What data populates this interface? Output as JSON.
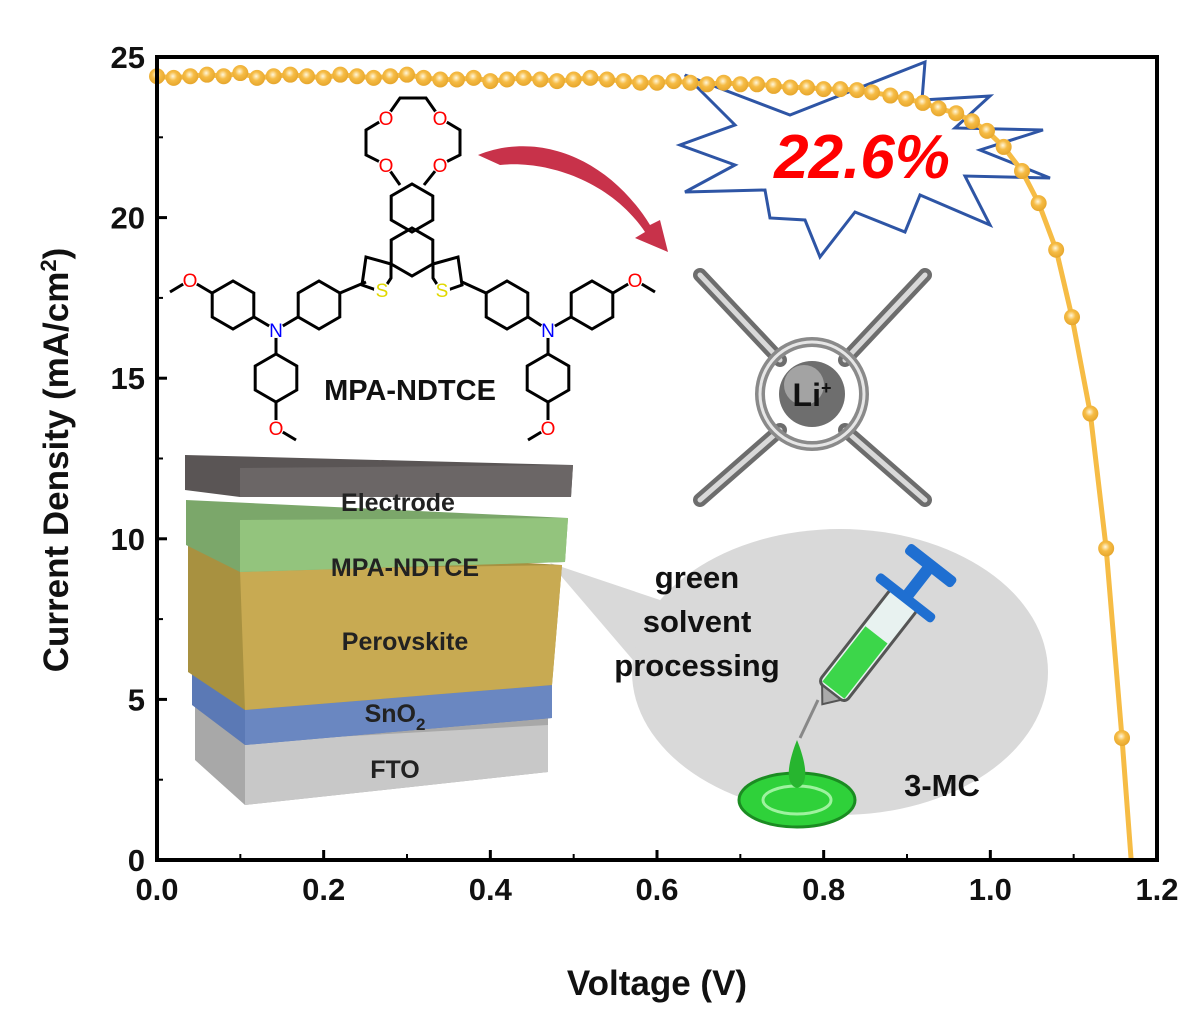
{
  "chart_data": {
    "type": "line",
    "xlabel": "Voltage (V)",
    "ylabel": "Current Density (mA/cm²)",
    "ylabel_main": "Current Density (mA/cm",
    "ylabel_sup": "2",
    "ylabel_end": ")",
    "xlim": [
      0,
      1.2
    ],
    "ylim": [
      0,
      25
    ],
    "x_ticks": [
      "0.0",
      "0.2",
      "0.4",
      "0.6",
      "0.8",
      "1.0",
      "1.2"
    ],
    "y_ticks": [
      "0",
      "5",
      "10",
      "15",
      "20",
      "25"
    ],
    "grid": false,
    "series_color": "#F6BC45",
    "series": [
      {
        "x": [
          0.0,
          0.02,
          0.04,
          0.06,
          0.08,
          0.1,
          0.12,
          0.14,
          0.16,
          0.18,
          0.2,
          0.22,
          0.24,
          0.26,
          0.28,
          0.3,
          0.32,
          0.34,
          0.36,
          0.38,
          0.4,
          0.42,
          0.44,
          0.46,
          0.48,
          0.5,
          0.52,
          0.54,
          0.56,
          0.58,
          0.6,
          0.62,
          0.64,
          0.66,
          0.68,
          0.7,
          0.72,
          0.74,
          0.76,
          0.78,
          0.8,
          0.82,
          0.84,
          0.858,
          0.88,
          0.899,
          0.919,
          0.938,
          0.959,
          0.978,
          0.996,
          1.016,
          1.038,
          1.058,
          1.079,
          1.098,
          1.12,
          1.139,
          1.158,
          1.169
        ],
        "y": [
          24.4,
          24.35,
          24.4,
          24.45,
          24.4,
          24.5,
          24.35,
          24.4,
          24.45,
          24.4,
          24.35,
          24.45,
          24.4,
          24.35,
          24.4,
          24.45,
          24.35,
          24.3,
          24.3,
          24.35,
          24.25,
          24.3,
          24.35,
          24.3,
          24.25,
          24.3,
          24.35,
          24.3,
          24.25,
          24.2,
          24.2,
          24.25,
          24.2,
          24.15,
          24.2,
          24.15,
          24.15,
          24.1,
          24.05,
          24.05,
          24.0,
          24.0,
          23.97,
          23.9,
          23.8,
          23.7,
          23.57,
          23.4,
          23.25,
          23.0,
          22.7,
          22.2,
          21.45,
          20.45,
          19.0,
          16.9,
          13.9,
          9.7,
          3.8,
          0.0
        ],
        "markers_until_index": 58
      }
    ]
  },
  "annotations": {
    "efficiency": "22.6%",
    "efficiency_color": "#FF0000",
    "burst_color": "#2E55A5",
    "molecule_name": "MPA-NDTCE",
    "atom_labels": {
      "oxygen": "O",
      "nitrogen": "N",
      "sulfur": "S"
    },
    "ion": "Li",
    "ion_charge": "+",
    "layers": {
      "electrode": "Electrode",
      "htl": "MPA-NDTCE",
      "perovskite": "Perovskite",
      "etl_main": "SnO",
      "etl_sub": "2",
      "substrate": "FTO"
    },
    "process_line1": "green",
    "process_line2": "solvent",
    "process_line3": "processing",
    "solvent": "3-MC"
  }
}
